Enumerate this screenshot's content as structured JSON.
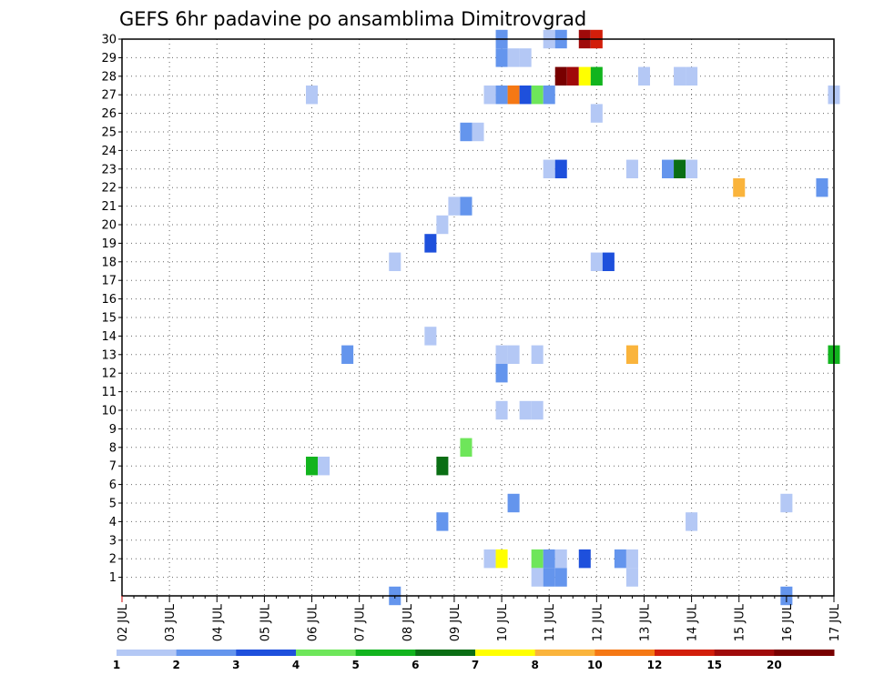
{
  "chart_data": {
    "type": "heatmap",
    "title": "GEFS 6hr padavine po ansamblima Dimitrovgrad",
    "xlabel": "",
    "ylabel": "",
    "x_axis": {
      "kind": "date",
      "ticks": [
        "02 JUL",
        "03 JUL",
        "04 JUL",
        "05 JUL",
        "06 JUL",
        "07 JUL",
        "08 JUL",
        "09 JUL",
        "10 JUL",
        "11 JUL",
        "12 JUL",
        "13 JUL",
        "14 JUL",
        "15 JUL",
        "16 JUL",
        "17 JUL"
      ],
      "range": [
        "02 JUL 00Z",
        "17 JUL 00Z"
      ],
      "step_hours": 6
    },
    "y_axis": {
      "label_ticks": [
        1,
        2,
        3,
        4,
        5,
        6,
        7,
        8,
        9,
        10,
        11,
        12,
        13,
        14,
        15,
        16,
        17,
        18,
        19,
        20,
        21,
        22,
        23,
        24,
        25,
        26,
        27,
        28,
        29,
        30
      ],
      "range": [
        0,
        30
      ]
    },
    "grid": "dotted",
    "legend": {
      "placement": "bottom",
      "labels": [
        "1",
        "2",
        "3",
        "4",
        "5",
        "6",
        "7",
        "8",
        "10",
        "12",
        "15",
        "20"
      ],
      "colors": [
        "#b4c8f5",
        "#6495ed",
        "#1e50dc",
        "#6ee65a",
        "#12b41e",
        "#0a6e14",
        "#ffff00",
        "#fab43c",
        "#f57814",
        "#d21e0a",
        "#a00a0a",
        "#780000"
      ]
    },
    "cells_note": "each cell: [ensemble member, day of July, hour UTC, color index into legend.colors]",
    "cells": [
      [
        30,
        10,
        0,
        1
      ],
      [
        30,
        11,
        0,
        0
      ],
      [
        30,
        11,
        6,
        1
      ],
      [
        30,
        11,
        18,
        10
      ],
      [
        30,
        12,
        0,
        9
      ],
      [
        29,
        10,
        0,
        1
      ],
      [
        29,
        10,
        6,
        0
      ],
      [
        29,
        10,
        12,
        0
      ],
      [
        28,
        11,
        6,
        11
      ],
      [
        28,
        11,
        12,
        10
      ],
      [
        28,
        11,
        18,
        6
      ],
      [
        28,
        12,
        0,
        4
      ],
      [
        28,
        13,
        0,
        0
      ],
      [
        28,
        13,
        18,
        0
      ],
      [
        28,
        14,
        0,
        0
      ],
      [
        27,
        6,
        0,
        0
      ],
      [
        27,
        9,
        18,
        0
      ],
      [
        27,
        10,
        0,
        1
      ],
      [
        27,
        10,
        6,
        8
      ],
      [
        27,
        10,
        12,
        2
      ],
      [
        27,
        10,
        18,
        3
      ],
      [
        27,
        11,
        0,
        1
      ],
      [
        27,
        17,
        0,
        0
      ],
      [
        26,
        12,
        0,
        0
      ],
      [
        25,
        9,
        6,
        1
      ],
      [
        25,
        9,
        12,
        0
      ],
      [
        23,
        11,
        0,
        0
      ],
      [
        23,
        11,
        6,
        2
      ],
      [
        23,
        12,
        18,
        0
      ],
      [
        23,
        13,
        12,
        1
      ],
      [
        23,
        13,
        18,
        5
      ],
      [
        23,
        14,
        0,
        0
      ],
      [
        22,
        15,
        0,
        7
      ],
      [
        22,
        16,
        18,
        1
      ],
      [
        21,
        9,
        0,
        0
      ],
      [
        21,
        9,
        6,
        1
      ],
      [
        20,
        8,
        18,
        0
      ],
      [
        19,
        8,
        12,
        2
      ],
      [
        18,
        7,
        18,
        0
      ],
      [
        18,
        12,
        0,
        0
      ],
      [
        18,
        12,
        6,
        2
      ],
      [
        14,
        8,
        12,
        0
      ],
      [
        13,
        6,
        18,
        1
      ],
      [
        13,
        10,
        0,
        0
      ],
      [
        13,
        10,
        6,
        0
      ],
      [
        13,
        10,
        18,
        0
      ],
      [
        13,
        12,
        18,
        7
      ],
      [
        13,
        17,
        0,
        4
      ],
      [
        12,
        10,
        0,
        1
      ],
      [
        10,
        10,
        0,
        0
      ],
      [
        10,
        10,
        12,
        0
      ],
      [
        10,
        10,
        18,
        0
      ],
      [
        8,
        9,
        6,
        3
      ],
      [
        7,
        6,
        0,
        4
      ],
      [
        7,
        6,
        6,
        0
      ],
      [
        7,
        8,
        18,
        5
      ],
      [
        5,
        10,
        6,
        1
      ],
      [
        5,
        16,
        0,
        0
      ],
      [
        4,
        8,
        18,
        1
      ],
      [
        4,
        14,
        0,
        0
      ],
      [
        2,
        9,
        18,
        0
      ],
      [
        2,
        10,
        0,
        6
      ],
      [
        2,
        10,
        18,
        3
      ],
      [
        2,
        11,
        0,
        1
      ],
      [
        2,
        11,
        6,
        0
      ],
      [
        2,
        11,
        18,
        2
      ],
      [
        2,
        12,
        12,
        1
      ],
      [
        2,
        12,
        18,
        0
      ],
      [
        1,
        10,
        18,
        0
      ],
      [
        1,
        11,
        0,
        1
      ],
      [
        1,
        11,
        6,
        1
      ],
      [
        1,
        12,
        18,
        0
      ],
      [
        0,
        7,
        18,
        1
      ],
      [
        0,
        16,
        0,
        1
      ]
    ]
  }
}
